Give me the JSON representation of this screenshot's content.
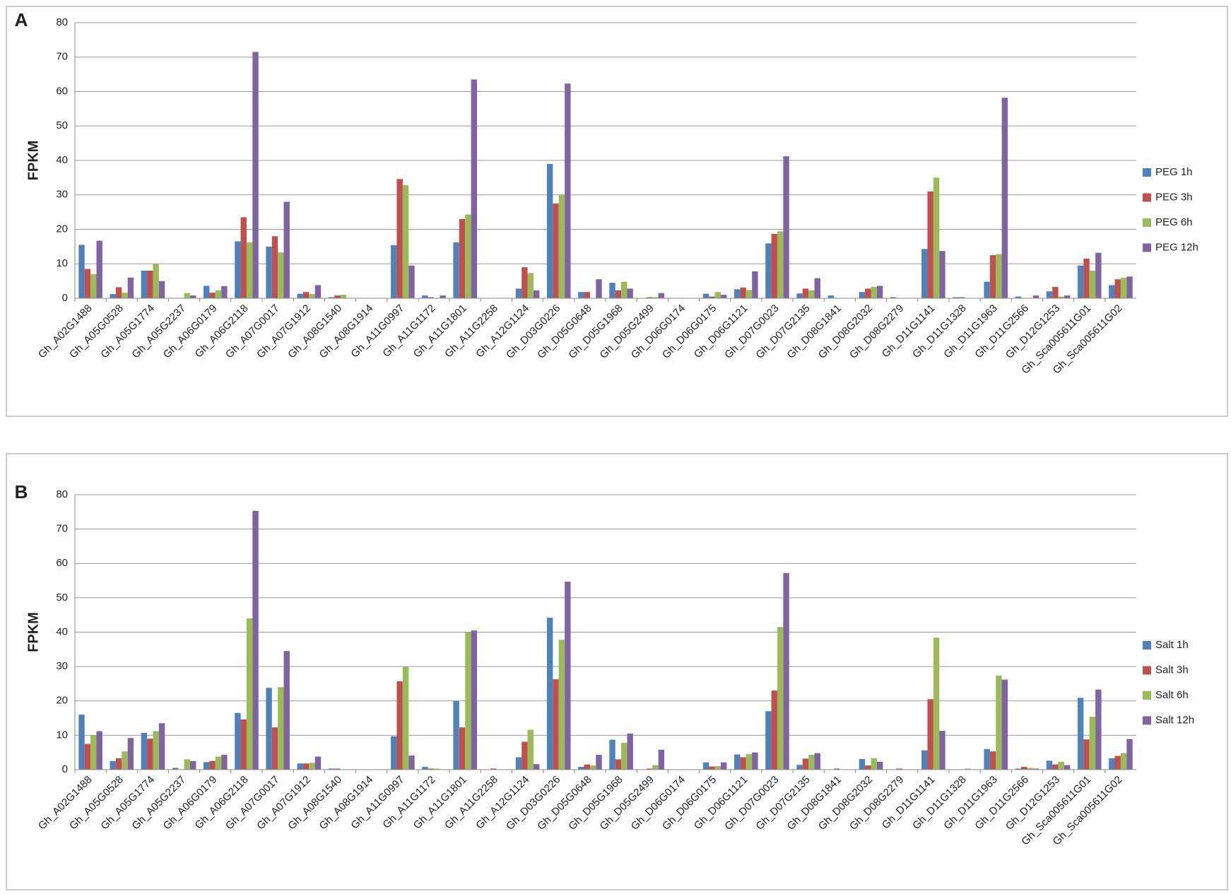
{
  "chart_data": [
    {
      "type": "bar",
      "panel_label": "A",
      "y_label": "FPKM",
      "categories": [
        "Gh_A02G1488",
        "Gh_A05G0528",
        "Gh_A05G1774",
        "Gh_A05G2237",
        "Gh_A06G0179",
        "Gh_A06G2118",
        "Gh_A07G0017",
        "Gh_A07G1912",
        "Gh_A08G1540",
        "Gh_A08G1914",
        "Gh_A11G0997",
        "Gh_A11G1172",
        "Gh_A11G1801",
        "Gh_A11G2258",
        "Gh_A12G1124",
        "Gh_D03G0226",
        "Gh_D05G0648",
        "Gh_D05G1968",
        "Gh_D05G2499",
        "Gh_D06G0174",
        "Gh_D06G0175",
        "Gh_D06G1121",
        "Gh_D07G0023",
        "Gh_D07G2135",
        "Gh_D08G1841",
        "Gh_D08G2032",
        "Gh_D08G2279",
        "Gh_D11G1141",
        "Gh_D11G1328",
        "Gh_D11G1963",
        "Gh_D11G2566",
        "Gh_D12G1253",
        "Gh_Sca005611G01",
        "Gh_Sca005611G02"
      ],
      "series": [
        {
          "name": "PEG 1h",
          "color": "#4f81bd",
          "values": [
            15.5,
            1.2,
            8,
            0,
            3.6,
            16.5,
            15,
            1.3,
            0.3,
            0,
            15.4,
            0.8,
            16.2,
            0,
            2.8,
            39,
            1.8,
            4.5,
            0,
            0,
            1.3,
            2.6,
            15.9,
            1.4,
            0.8,
            1.8,
            0.3,
            14.3,
            0.3,
            4.8,
            0.5,
            2,
            9.5,
            3.8
          ]
        },
        {
          "name": "PEG 3h",
          "color": "#c0504d",
          "values": [
            8.5,
            3.2,
            8,
            0,
            1.6,
            23.5,
            18,
            1.8,
            0.8,
            0,
            34.6,
            0.3,
            23,
            0,
            9,
            27.5,
            1.8,
            2.3,
            0.3,
            0,
            0.5,
            3.1,
            18.7,
            2.8,
            0,
            2.8,
            0,
            31,
            0.3,
            12.5,
            0,
            3.3,
            11.5,
            5.5
          ]
        },
        {
          "name": "PEG 6h",
          "color": "#9bbb59",
          "values": [
            7,
            1.6,
            10,
            1.5,
            2.3,
            16.2,
            13.3,
            1.2,
            1,
            0,
            32.8,
            0,
            24.3,
            0,
            7.3,
            30,
            0,
            4.8,
            0.3,
            0,
            1.8,
            2.4,
            19.4,
            2.3,
            0,
            3.3,
            0,
            35,
            0,
            12.8,
            0,
            0.5,
            8,
            6
          ]
        },
        {
          "name": "PEG 12h",
          "color": "#8064a2",
          "values": [
            16.7,
            6,
            5,
            0.8,
            3.5,
            71.5,
            28,
            3.8,
            0,
            0,
            9.5,
            0.8,
            63.5,
            0,
            2.3,
            62.3,
            5.5,
            2.8,
            1.5,
            0,
            1,
            7.8,
            41.2,
            5.8,
            0,
            3.6,
            0,
            13.7,
            0,
            58.2,
            0.8,
            0.8,
            13.2,
            6.3
          ]
        }
      ],
      "ylim": [
        0,
        80
      ],
      "yticks": [
        0,
        10,
        20,
        30,
        40,
        50,
        60,
        70,
        80
      ],
      "grid": true,
      "legend": "right"
    },
    {
      "type": "bar",
      "panel_label": "B",
      "y_label": "FPKM",
      "categories": [
        "Gh_A02G1488",
        "Gh_A05G0528",
        "Gh_A05G1774",
        "Gh_A05G2237",
        "Gh_A06G0179",
        "Gh_A06G2118",
        "Gh_A07G0017",
        "Gh_A07G1912",
        "Gh_A08G1540",
        "Gh_A08G1914",
        "Gh_A11G0997",
        "Gh_A11G1172",
        "Gh_A11G1801",
        "Gh_A11G2258",
        "Gh_A12G1124",
        "Gh_D03G0226",
        "Gh_D05G0648",
        "Gh_D05G1968",
        "Gh_D05G2499",
        "Gh_D06G0174",
        "Gh_D06G0175",
        "Gh_D06G1121",
        "Gh_D07G0023",
        "Gh_D07G2135",
        "Gh_D08G1841",
        "Gh_D08G2032",
        "Gh_D08G2279",
        "Gh_D11G1141",
        "Gh_D11G1328",
        "Gh_D11G1963",
        "Gh_D11G2566",
        "Gh_D12G1253",
        "Gh_Sca005611G01",
        "Gh_Sca005611G02"
      ],
      "series": [
        {
          "name": "Salt 1h",
          "color": "#4f81bd",
          "values": [
            16,
            2.5,
            10.7,
            0.5,
            2.2,
            16.5,
            23.8,
            1.8,
            0.3,
            0,
            9.7,
            0.8,
            20,
            0,
            3.6,
            44.2,
            0.8,
            8.7,
            0,
            0,
            2.1,
            4.4,
            17,
            1.4,
            0,
            3.1,
            0,
            5.6,
            0,
            6,
            0.3,
            2.6,
            20.9,
            3.3
          ]
        },
        {
          "name": "Salt 3h",
          "color": "#c0504d",
          "values": [
            7.5,
            3.3,
            9,
            0,
            2.5,
            14.6,
            12.3,
            1.8,
            0.3,
            0,
            25.7,
            0.3,
            12.3,
            0.3,
            8.1,
            26.3,
            1.5,
            3,
            0.3,
            0,
            0.9,
            3.6,
            23,
            3.2,
            0.3,
            1.2,
            0.3,
            20.5,
            0,
            5.3,
            0.8,
            1.5,
            8.8,
            4
          ]
        },
        {
          "name": "Salt 6h",
          "color": "#9bbb59",
          "values": [
            10,
            5.3,
            11.2,
            3,
            3.8,
            44,
            24,
            2,
            0,
            0,
            29.9,
            0.3,
            40,
            0,
            11.6,
            37.8,
            1.2,
            7.8,
            1.3,
            0,
            1,
            4.5,
            41.5,
            4.3,
            0,
            3.3,
            0,
            38.4,
            0.3,
            27.4,
            0.5,
            2.3,
            15.4,
            4.8
          ]
        },
        {
          "name": "Salt 12h",
          "color": "#8064a2",
          "values": [
            11.2,
            9.2,
            13.5,
            2.5,
            4.3,
            75.3,
            34.5,
            3.8,
            0,
            0,
            4.1,
            0,
            40.5,
            0,
            1.6,
            54.7,
            4.3,
            10.5,
            5.8,
            0,
            2.1,
            5,
            57.2,
            4.8,
            0,
            2.3,
            0,
            11.3,
            0,
            26.2,
            0.3,
            1.3,
            23.3,
            8.9
          ]
        }
      ],
      "ylim": [
        0,
        80
      ],
      "yticks": [
        0,
        10,
        20,
        30,
        40,
        50,
        60,
        70,
        80
      ],
      "grid": true,
      "legend": "right"
    }
  ]
}
